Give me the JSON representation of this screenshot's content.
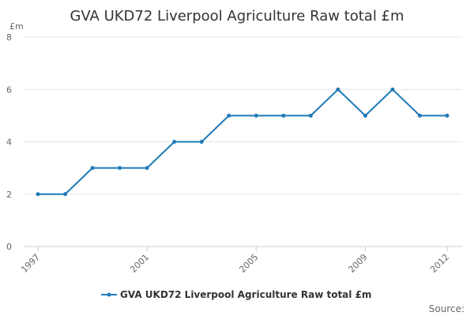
{
  "chart_data": {
    "type": "line",
    "title": "GVA UKD72 Liverpool Agriculture Raw total £m",
    "ylabel": "£m",
    "xlabel": "",
    "ylim": [
      0,
      8
    ],
    "yticks": [
      0,
      2,
      4,
      6,
      8
    ],
    "x": [
      1997,
      1998,
      1999,
      2000,
      2001,
      2002,
      2003,
      2004,
      2005,
      2006,
      2007,
      2008,
      2009,
      2010,
      2011,
      2012
    ],
    "xtick_labels": [
      "1997",
      "2001",
      "2005",
      "2009",
      "2012"
    ],
    "series": [
      {
        "name": "GVA UKD72 Liverpool Agriculture Raw total £m",
        "values": [
          2,
          2,
          3,
          3,
          3,
          4,
          4,
          5,
          5,
          5,
          5,
          6,
          5,
          6,
          5,
          5
        ]
      }
    ],
    "grid": true,
    "legend": "bottom-center",
    "colors": {
      "series": "#1f7ab8",
      "grid": "#e6e6e6",
      "axis": "#cccccc"
    }
  },
  "footer": {
    "source_label": "Source:"
  }
}
